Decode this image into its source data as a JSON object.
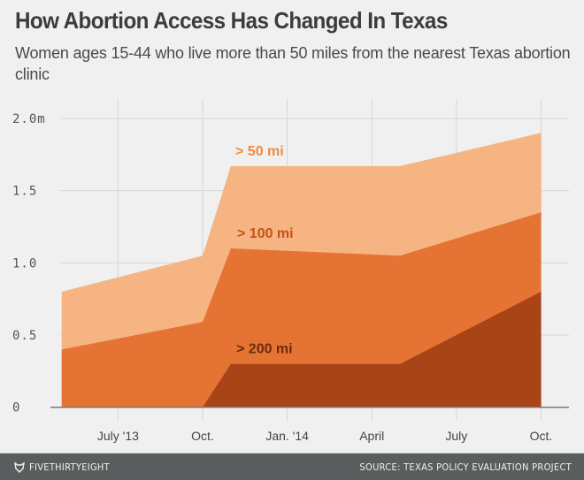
{
  "header": {
    "title": "How Abortion Access Has Changed In Texas",
    "subtitle": "Women ages 15-44 who live more than 50 miles from the nearest Texas abortion clinic"
  },
  "chart_data": {
    "type": "area",
    "title": "How Abortion Access Has Changed In Texas",
    "subtitle": "Women ages 15-44 who live more than 50 miles from the nearest Texas abortion clinic",
    "x": [
      "2013-05",
      "2013-10",
      "2013-11",
      "2014-05",
      "2014-10"
    ],
    "x_ticks": [
      {
        "date": "2013-07",
        "label": "July '13"
      },
      {
        "date": "2013-10",
        "label": "Oct."
      },
      {
        "date": "2014-01",
        "label": "Jan. '14"
      },
      {
        "date": "2014-04",
        "label": "April"
      },
      {
        "date": "2014-07",
        "label": "July"
      },
      {
        "date": "2014-10",
        "label": "Oct."
      }
    ],
    "y_ticks": [
      {
        "value": 0,
        "label": "0"
      },
      {
        "value": 0.5,
        "label": "0.5"
      },
      {
        "value": 1.0,
        "label": "1.0"
      },
      {
        "value": 1.5,
        "label": "1.5"
      },
      {
        "value": 2.0,
        "label": "2.0m"
      }
    ],
    "ylim": [
      0,
      2.0
    ],
    "y_unit": "millions",
    "grid": true,
    "overlapping": true,
    "series": [
      {
        "name": "> 50 mi",
        "values": [
          0.8,
          1.05,
          1.67,
          1.67,
          1.9
        ],
        "color": "#f6b482",
        "label_color": "#f28a3a"
      },
      {
        "name": "> 100 mi",
        "values": [
          0.4,
          0.59,
          1.1,
          1.05,
          1.35
        ],
        "color": "#e57434",
        "label_color": "#c9501a"
      },
      {
        "name": "> 200 mi",
        "values": [
          0.0,
          0.0,
          0.3,
          0.3,
          0.8
        ],
        "color": "#a84415",
        "label_color": "#6e2a0c"
      }
    ]
  },
  "footer": {
    "brand": "FIVETHIRTYEIGHT",
    "brand_icon": "fox-icon",
    "source": "SOURCE: TEXAS POLICY EVALUATION PROJECT"
  }
}
